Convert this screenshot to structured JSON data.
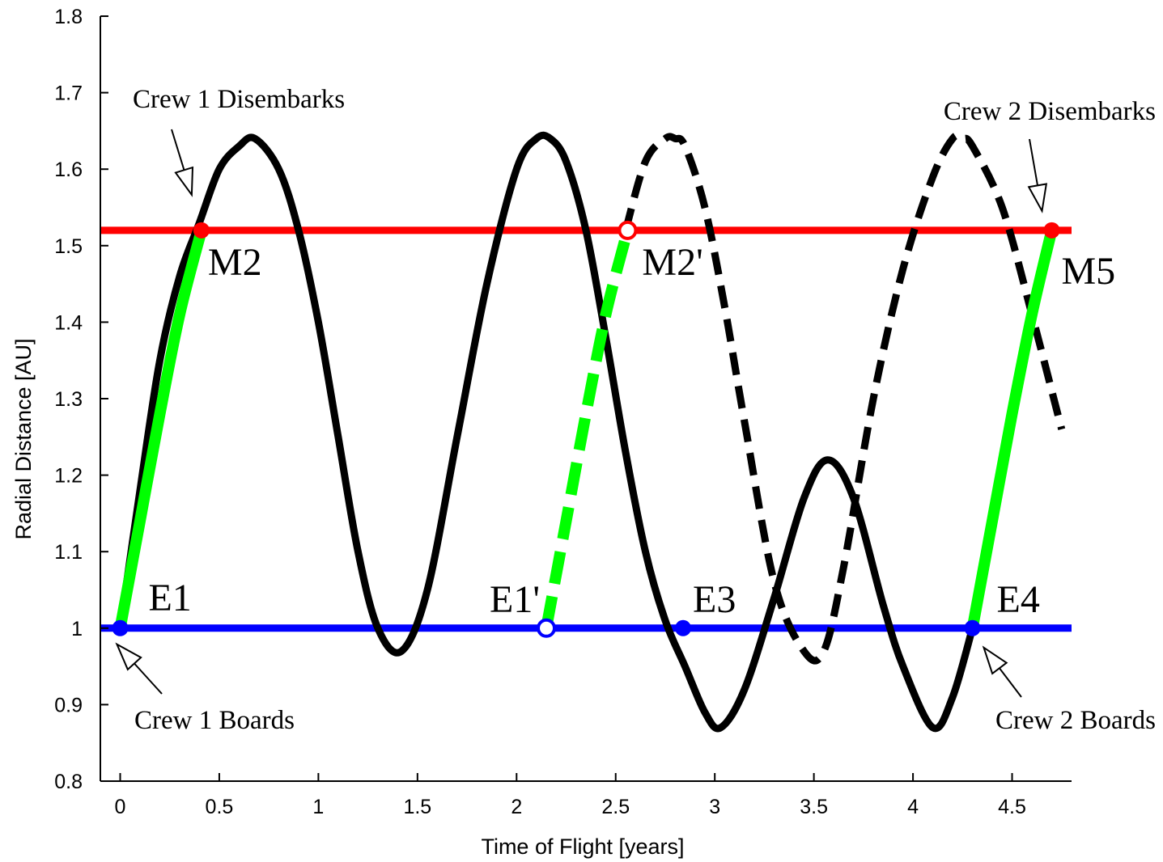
{
  "chart_data": {
    "type": "line",
    "xlabel": "Time of Flight [years]",
    "ylabel": "Radial Distance [AU]",
    "xlim": [
      -0.1,
      4.8
    ],
    "ylim": [
      0.8,
      1.8
    ],
    "x_ticks": [
      "0",
      "0.5",
      "1",
      "1.5",
      "2",
      "2.5",
      "3",
      "3.5",
      "4",
      "4.5"
    ],
    "y_ticks": [
      "0.8",
      "0.9",
      "1",
      "1.1",
      "1.2",
      "1.3",
      "1.4",
      "1.5",
      "1.6",
      "1.7",
      "1.8"
    ],
    "grid": false,
    "colors": {
      "earth": "#0000ff",
      "mars": "#ff0000",
      "transfer": "#00ff00",
      "cycler": "#000000"
    },
    "horizontal_lines": [
      {
        "color": "#ff0000",
        "y": 1.52,
        "x": [
          -0.1,
          4.8
        ]
      },
      {
        "color": "#0000ff",
        "y": 1.0,
        "x": [
          -0.1,
          4.8
        ]
      }
    ],
    "series": [
      {
        "color": "#000000",
        "style": "solid",
        "x": [
          0.0,
          0.1,
          0.2,
          0.3,
          0.4,
          0.5,
          0.6,
          0.68,
          0.8,
          0.9,
          1.0,
          1.1,
          1.2,
          1.3,
          1.42,
          1.55,
          1.7,
          1.85,
          2.0,
          2.1,
          2.17,
          2.25,
          2.35,
          2.45,
          2.55,
          2.65,
          2.75,
          2.85,
          2.95,
          3.03,
          3.15,
          3.3,
          3.45,
          3.57,
          3.7,
          3.85,
          3.95,
          4.1,
          4.2,
          4.3
        ],
        "y": [
          1.0,
          1.18,
          1.35,
          1.46,
          1.53,
          1.6,
          1.63,
          1.64,
          1.6,
          1.52,
          1.4,
          1.25,
          1.1,
          1.0,
          0.97,
          1.05,
          1.25,
          1.45,
          1.6,
          1.64,
          1.64,
          1.61,
          1.52,
          1.38,
          1.23,
          1.1,
          1.01,
          0.95,
          0.89,
          0.87,
          0.92,
          1.04,
          1.17,
          1.22,
          1.17,
          1.03,
          0.95,
          0.87,
          0.91,
          1.0
        ]
      },
      {
        "color": "#000000",
        "style": "dashed",
        "x": [
          2.55,
          2.65,
          2.75,
          2.8,
          2.85,
          2.95,
          3.05,
          3.15,
          3.3,
          3.45,
          3.55,
          3.65,
          3.8,
          3.95,
          4.1,
          4.2,
          4.25,
          4.3,
          4.45,
          4.6,
          4.75
        ],
        "y": [
          1.52,
          1.61,
          1.64,
          1.64,
          1.63,
          1.55,
          1.42,
          1.27,
          1.06,
          0.97,
          0.97,
          1.08,
          1.3,
          1.47,
          1.59,
          1.64,
          1.64,
          1.63,
          1.55,
          1.41,
          1.26
        ]
      },
      {
        "color": "#00ff00",
        "style": "solid",
        "x": [
          0.0,
          0.1,
          0.2,
          0.3,
          0.41
        ],
        "y": [
          1.0,
          1.14,
          1.28,
          1.41,
          1.52
        ]
      },
      {
        "color": "#00ff00",
        "style": "dashed",
        "x": [
          2.15,
          2.25,
          2.35,
          2.45,
          2.56
        ],
        "y": [
          1.0,
          1.14,
          1.28,
          1.41,
          1.52
        ]
      },
      {
        "color": "#00ff00",
        "style": "solid",
        "x": [
          4.3,
          4.4,
          4.5,
          4.6,
          4.7
        ],
        "y": [
          1.0,
          1.14,
          1.28,
          1.41,
          1.52
        ]
      }
    ],
    "points": [
      {
        "label": "E1",
        "x": 0.0,
        "y": 1.0,
        "color": "#0000ff",
        "filled": true
      },
      {
        "label": "M2",
        "x": 0.41,
        "y": 1.52,
        "color": "#ff0000",
        "filled": true
      },
      {
        "label": "E1'",
        "x": 2.15,
        "y": 1.0,
        "color": "#0000ff",
        "filled": false
      },
      {
        "label": "M2'",
        "x": 2.56,
        "y": 1.52,
        "color": "#ff0000",
        "filled": false
      },
      {
        "label": "E3",
        "x": 2.84,
        "y": 1.0,
        "color": "#0000ff",
        "filled": true
      },
      {
        "label": "E4",
        "x": 4.3,
        "y": 1.0,
        "color": "#0000ff",
        "filled": true
      },
      {
        "label": "M5",
        "x": 4.7,
        "y": 1.52,
        "color": "#ff0000",
        "filled": true
      }
    ],
    "annotations": [
      {
        "text": "Crew 1 Disembarks",
        "target": "M2"
      },
      {
        "text": "Crew 1 Boards",
        "target": "E1"
      },
      {
        "text": "Crew 2 Disembarks",
        "target": "M5"
      },
      {
        "text": "Crew 2 Boards",
        "target": "E4"
      }
    ]
  }
}
